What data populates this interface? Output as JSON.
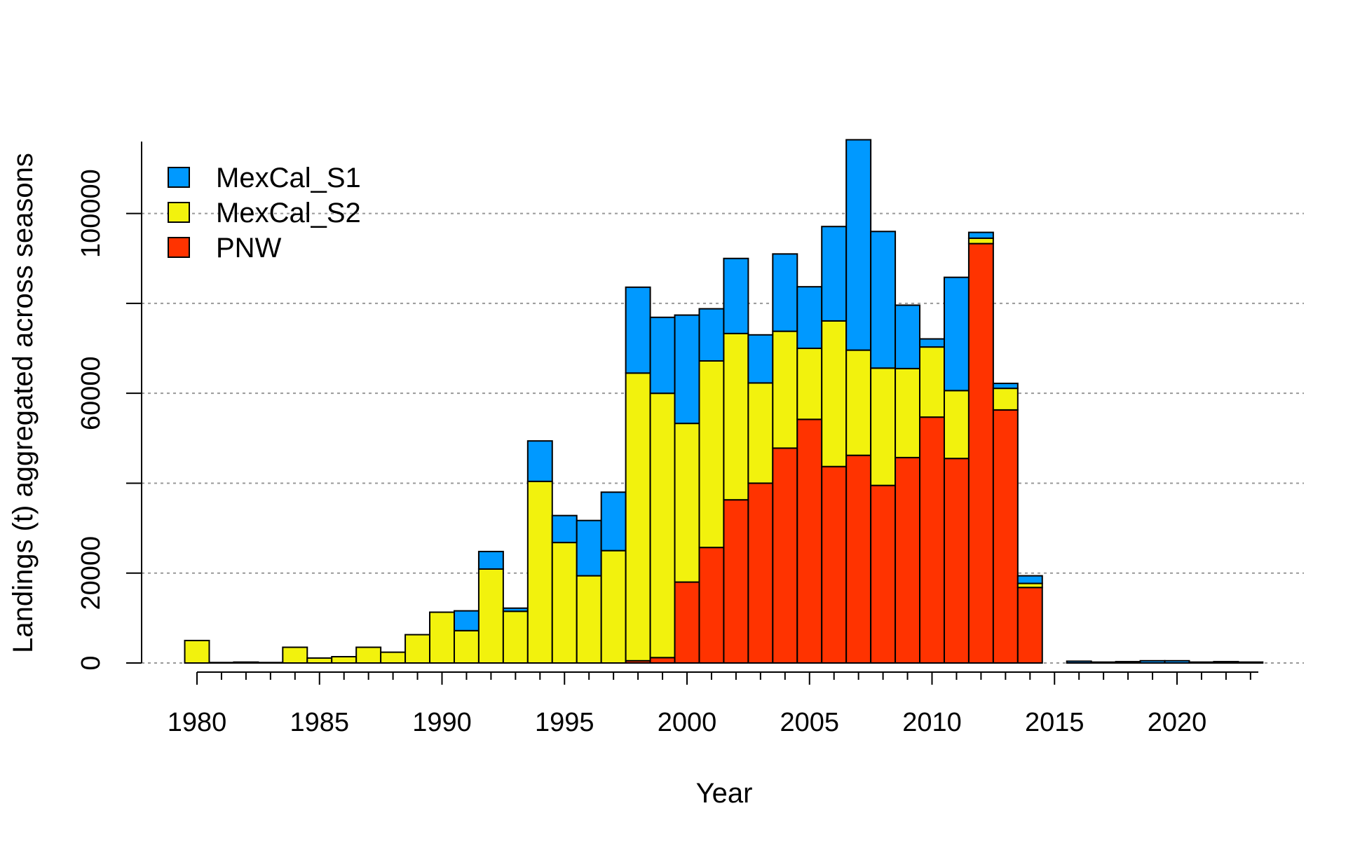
{
  "chart_data": {
    "type": "bar",
    "stacked": true,
    "xlabel": "Year",
    "ylabel": "Landings (t) aggregated across seasons",
    "ylim": [
      0,
      116000
    ],
    "xlim": [
      1979.5,
      2023.5
    ],
    "grid": true,
    "legend_position": "top-left",
    "x_ticks": [
      1980,
      1985,
      1990,
      1995,
      2000,
      2005,
      2010,
      2015,
      2020
    ],
    "y_ticks": [
      0,
      20000,
      60000,
      100000
    ],
    "categories": [
      1980,
      1981,
      1982,
      1983,
      1984,
      1985,
      1986,
      1987,
      1988,
      1989,
      1990,
      1991,
      1992,
      1993,
      1994,
      1995,
      1996,
      1997,
      1998,
      1999,
      2000,
      2001,
      2002,
      2003,
      2004,
      2005,
      2006,
      2007,
      2008,
      2009,
      2010,
      2011,
      2012,
      2013,
      2014,
      2015,
      2016,
      2017,
      2018,
      2019,
      2020,
      2021,
      2022,
      2023
    ],
    "series": [
      {
        "name": "PNW",
        "color": "#FF3300",
        "values": [
          0,
          0,
          0,
          0,
          0,
          0,
          0,
          0,
          0,
          0,
          0,
          0,
          0,
          0,
          0,
          0,
          0,
          0,
          500,
          1200,
          18000,
          25700,
          36300,
          40000,
          47800,
          54200,
          43700,
          46200,
          39500,
          45700,
          54700,
          45500,
          93300,
          56300,
          16800,
          0,
          0,
          0,
          0,
          0,
          0,
          0,
          0,
          0
        ]
      },
      {
        "name": "MexCal_S2",
        "color": "#F2F20D",
        "values": [
          5000,
          100,
          200,
          100,
          3500,
          1100,
          1400,
          3500,
          2400,
          6300,
          11300,
          7200,
          20900,
          11500,
          40400,
          26800,
          19400,
          25000,
          64000,
          58800,
          35300,
          41500,
          37000,
          22300,
          26000,
          15800,
          32400,
          23400,
          26100,
          19800,
          15600,
          15100,
          1200,
          4800,
          900,
          0,
          0,
          0,
          0,
          0,
          0,
          0,
          0,
          0
        ]
      },
      {
        "name": "MexCal_S1",
        "color": "#0099FF",
        "values": [
          0,
          0,
          0,
          0,
          0,
          0,
          0,
          0,
          0,
          0,
          0,
          4400,
          3900,
          700,
          9000,
          6000,
          12300,
          13000,
          19100,
          16900,
          24100,
          11600,
          16700,
          10700,
          17200,
          13700,
          21000,
          46800,
          30400,
          14100,
          1800,
          25200,
          1300,
          1100,
          1700,
          0,
          400,
          200,
          300,
          500,
          500,
          200,
          300,
          200
        ]
      }
    ]
  }
}
